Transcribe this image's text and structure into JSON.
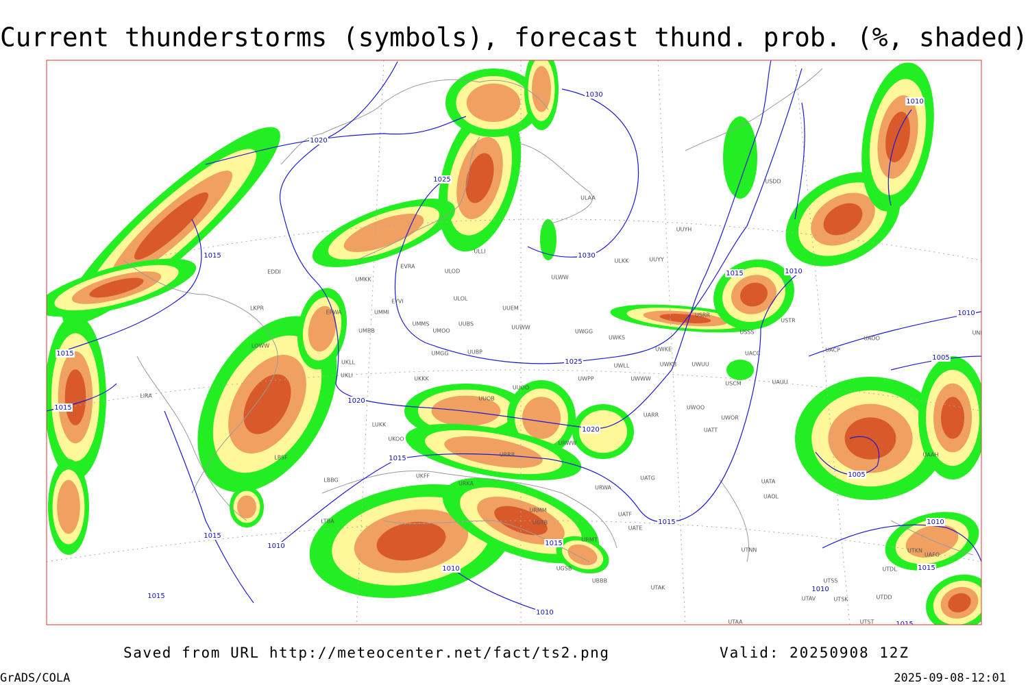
{
  "header": {
    "title": "Current thunderstorms (symbols), forecast thund. prob. (%, shaded)"
  },
  "footer": {
    "source": "Saved from URL http://meteocenter.net/fact/ts2.png",
    "valid": "Valid: 20250908 12Z",
    "software": "GrADS/COLA",
    "timestamp": "2025-09-08-12:01"
  },
  "isobars": [
    "1020",
    "1030",
    "1025",
    "1030",
    "1015",
    "1015",
    "1010",
    "1010",
    "1010",
    "1005",
    "1015",
    "1015",
    "1020",
    "1025",
    "1020",
    "1015",
    "1015",
    "1010",
    "1015",
    "1015",
    "1010",
    "1010",
    "1015",
    "1005",
    "1010",
    "1015",
    "1010",
    "1015"
  ],
  "stations": [
    "EDDI",
    "LKPR",
    "LOWW",
    "LIRA",
    "LBSF",
    "LBBG",
    "LTBA",
    "UMKK",
    "EVRA",
    "ULOD",
    "ULOL",
    "EYVI",
    "UMMI",
    "EPWA",
    "UMBB",
    "UMMS",
    "UMOO",
    "UUBS",
    "UUEM",
    "UUWW",
    "UWGG",
    "UWKS",
    "UMGG",
    "UUBP",
    "UKLL",
    "UKLI",
    "UKKK",
    "UUOO",
    "UWPP",
    "UWWW",
    "UWLL",
    "UWKE",
    "UWKB",
    "UWUU",
    "UUOB",
    "UARR",
    "UWOO",
    "UWOR",
    "UATT",
    "UKOO",
    "LUKK",
    "URWW",
    "URRR",
    "URKA",
    "UKFF",
    "UATG",
    "URWA",
    "URMM",
    "UGTB",
    "UATF",
    "UATE",
    "URMT",
    "UGSB",
    "UBBB",
    "UTAK",
    "UTAA",
    "UTNN",
    "UAOL",
    "UATA",
    "UACC",
    "UAUU",
    "USCM",
    "USSS",
    "USTR",
    "USRR",
    "UAOO",
    "UNBB",
    "UACP",
    "UAAH",
    "ULAA",
    "UUYH",
    "ULKK",
    "UUYY",
    "ULWW",
    "USDD",
    "ULLI",
    "UTSS",
    "UTAV",
    "UTSK",
    "UTDD",
    "UTST",
    "UTDL",
    "UTKN",
    "UAFO"
  ]
}
